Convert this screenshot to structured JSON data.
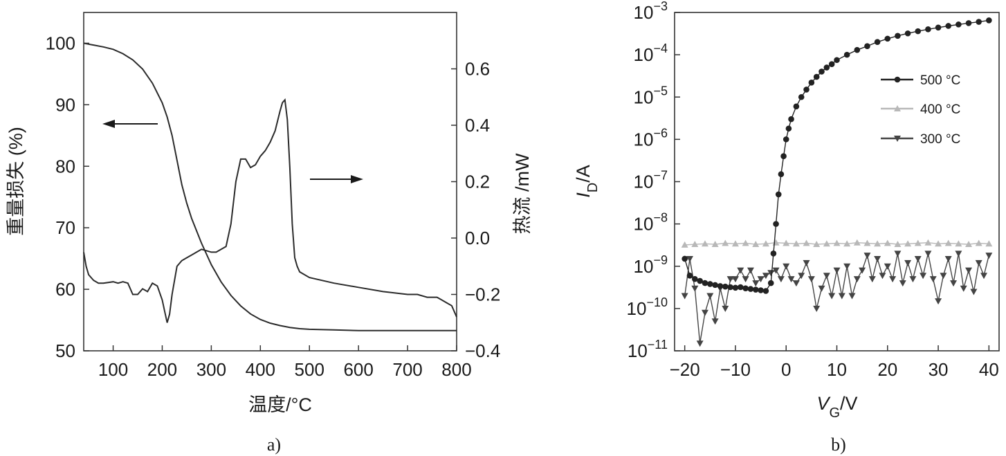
{
  "chart_data": [
    {
      "panel": "a)",
      "type": "line",
      "xlabel": "温度/°C",
      "ylabel_left": "重量损失 (%)",
      "ylabel_right": "热流 /mW",
      "xlim": [
        40,
        800
      ],
      "ylim_left": [
        50,
        105
      ],
      "ylim_right": [
        -0.4,
        0.8
      ],
      "xticks": [
        100,
        200,
        300,
        400,
        500,
        600,
        700,
        800
      ],
      "yticks_left": [
        50,
        60,
        70,
        80,
        90,
        100
      ],
      "yticks_right": [
        "-0.4",
        "-0.2",
        "0.0",
        "0.2",
        "0.4",
        "0.6"
      ],
      "xtick_labels": [
        "100",
        "200",
        "300",
        "400",
        "500",
        "600",
        "700",
        "800"
      ],
      "ytick_left_labels": [
        "50",
        "60",
        "70",
        "80",
        "90",
        "100"
      ],
      "ytick_right_labels": [
        "−0.4",
        "−0.2",
        "0.0",
        "0.2",
        "0.4",
        "0.6"
      ],
      "series": [
        {
          "axis": "left",
          "x": [
            40,
            60,
            80,
            100,
            120,
            140,
            160,
            180,
            200,
            210,
            220,
            230,
            240,
            250,
            260,
            280,
            300,
            320,
            340,
            360,
            380,
            400,
            420,
            440,
            460,
            480,
            500,
            550,
            600,
            700,
            800
          ],
          "y": [
            100,
            99.7,
            99.4,
            99.0,
            98.3,
            97.3,
            95.8,
            93.5,
            90.3,
            88.0,
            85.0,
            81.0,
            77.0,
            74.0,
            71.5,
            67.5,
            64.0,
            61.2,
            59.0,
            57.3,
            56.0,
            55.1,
            54.5,
            54.1,
            53.8,
            53.6,
            53.5,
            53.4,
            53.3,
            53.3,
            53.3
          ]
        },
        {
          "axis": "right",
          "x": [
            40,
            45,
            50,
            60,
            70,
            80,
            100,
            110,
            120,
            130,
            140,
            150,
            160,
            170,
            180,
            190,
            200,
            205,
            210,
            215,
            220,
            230,
            240,
            250,
            260,
            270,
            280,
            290,
            300,
            310,
            320,
            330,
            340,
            350,
            360,
            370,
            380,
            390,
            400,
            410,
            420,
            430,
            440,
            445,
            450,
            455,
            460,
            465,
            470,
            475,
            480,
            500,
            550,
            600,
            650,
            700,
            720,
            740,
            760,
            770,
            780,
            790,
            800
          ],
          "y": [
            -0.05,
            -0.1,
            -0.13,
            -0.15,
            -0.16,
            -0.16,
            -0.155,
            -0.16,
            -0.155,
            -0.16,
            -0.2,
            -0.2,
            -0.18,
            -0.19,
            -0.16,
            -0.17,
            -0.22,
            -0.26,
            -0.3,
            -0.27,
            -0.2,
            -0.1,
            -0.08,
            -0.07,
            -0.06,
            -0.05,
            -0.04,
            -0.045,
            -0.05,
            -0.05,
            -0.04,
            -0.03,
            0.05,
            0.2,
            0.28,
            0.28,
            0.25,
            0.26,
            0.29,
            0.31,
            0.34,
            0.38,
            0.45,
            0.48,
            0.49,
            0.42,
            0.25,
            0.05,
            -0.07,
            -0.1,
            -0.12,
            -0.14,
            -0.16,
            -0.175,
            -0.19,
            -0.2,
            -0.2,
            -0.21,
            -0.21,
            -0.22,
            -0.23,
            -0.24,
            -0.28
          ]
        }
      ],
      "annotations": [
        {
          "type": "arrow",
          "direction": "left",
          "refers_to": "left axis"
        },
        {
          "type": "arrow",
          "direction": "right",
          "refers_to": "right axis"
        }
      ]
    },
    {
      "panel": "b)",
      "type": "line",
      "xlabel": "V_G/V",
      "ylabel": "I_D/A",
      "yscale": "log",
      "xlim": [
        -22,
        42
      ],
      "ylim": [
        1e-11,
        0.001
      ],
      "xticks": [
        -20,
        -10,
        0,
        10,
        20,
        30,
        40
      ],
      "xtick_labels": [
        "−20",
        "−10",
        "0",
        "10",
        "20",
        "30",
        "40"
      ],
      "yticks_exp": [
        -11,
        -10,
        -9,
        -8,
        -7,
        -6,
        -5,
        -4,
        -3
      ],
      "legend_position": "upper right",
      "series": [
        {
          "name": "500 °C",
          "marker": "circle",
          "color": "#222222",
          "x": [
            -20,
            -19,
            -18,
            -17,
            -16,
            -15,
            -14,
            -13,
            -12,
            -11,
            -10,
            -9,
            -8,
            -7,
            -6,
            -5,
            -4,
            -3,
            -2.5,
            -2,
            -1.5,
            -1,
            -0.5,
            0,
            0.5,
            1,
            2,
            3,
            4,
            5,
            6,
            7,
            8,
            9,
            10,
            12,
            14,
            16,
            18,
            20,
            22,
            24,
            26,
            28,
            30,
            32,
            34,
            36,
            38,
            40
          ],
          "y": [
            1.5e-09,
            6e-10,
            5e-10,
            4.5e-10,
            4e-10,
            3.8e-10,
            3.6e-10,
            3.4e-10,
            3.3e-10,
            3.2e-10,
            3.1e-10,
            3.2e-10,
            3e-10,
            2.9e-10,
            2.8e-10,
            2.7e-10,
            2.6e-10,
            4e-10,
            2e-09,
            1e-08,
            5e-08,
            1.5e-07,
            4e-07,
            1e-06,
            1.8e-06,
            3e-06,
            6e-06,
            1e-05,
            1.5e-05,
            2.2e-05,
            3e-05,
            4e-05,
            5e-05,
            6e-05,
            7.5e-05,
            0.0001,
            0.00013,
            0.00016,
            0.0002,
            0.00024,
            0.00028,
            0.00032,
            0.00036,
            0.0004,
            0.00044,
            0.00048,
            0.00052,
            0.00056,
            0.0006,
            0.00065
          ]
        },
        {
          "name": "400 °C",
          "marker": "triangle-up",
          "color": "#b8b8b8",
          "x": [
            -20,
            -18,
            -16,
            -14,
            -12,
            -10,
            -8,
            -6,
            -4,
            -2,
            0,
            2,
            4,
            6,
            8,
            10,
            12,
            14,
            16,
            18,
            20,
            22,
            24,
            26,
            28,
            30,
            32,
            34,
            36,
            38,
            40
          ],
          "y": [
            3.2e-09,
            3.3e-09,
            3.4e-09,
            3.3e-09,
            3.5e-09,
            3.4e-09,
            3.5e-09,
            3.3e-09,
            3.4e-09,
            3.6e-09,
            3.5e-09,
            3.4e-09,
            3.5e-09,
            3.3e-09,
            3.4e-09,
            3.5e-09,
            3.4e-09,
            3.6e-09,
            3.5e-09,
            3.4e-09,
            3.5e-09,
            3.3e-09,
            3.4e-09,
            3.5e-09,
            3.6e-09,
            3.4e-09,
            3.5e-09,
            3.4e-09,
            3.3e-09,
            3.5e-09,
            3.4e-09
          ]
        },
        {
          "name": "300 °C",
          "marker": "triangle-down",
          "color": "#444444",
          "x": [
            -20,
            -19,
            -18,
            -17,
            -16,
            -15,
            -14,
            -13,
            -12,
            -11,
            -10,
            -9,
            -8,
            -7,
            -6,
            -5,
            -4,
            -3,
            -2,
            -1,
            0,
            1,
            2,
            3,
            4,
            5,
            6,
            7,
            8,
            9,
            10,
            11,
            12,
            13,
            14,
            15,
            16,
            17,
            18,
            19,
            20,
            21,
            22,
            23,
            24,
            25,
            26,
            27,
            28,
            29,
            30,
            31,
            32,
            33,
            34,
            35,
            36,
            37,
            38,
            39,
            40
          ],
          "y": [
            2e-10,
            1.5e-09,
            3e-10,
            1.5e-11,
            8e-11,
            2e-10,
            5e-11,
            3e-10,
            1e-10,
            5e-10,
            5e-10,
            8e-10,
            5e-10,
            8e-10,
            4e-10,
            5e-10,
            6e-10,
            7e-10,
            8e-10,
            5e-10,
            1e-09,
            5e-10,
            4e-10,
            6e-10,
            1.2e-09,
            5e-10,
            1e-10,
            3e-10,
            6e-10,
            2e-10,
            8e-10,
            2e-10,
            1e-09,
            2e-10,
            5e-10,
            8e-10,
            1.8e-09,
            5e-10,
            1.5e-09,
            6e-10,
            1e-09,
            5e-10,
            2e-09,
            4e-10,
            1.2e-09,
            5e-10,
            1.5e-09,
            6e-10,
            2e-09,
            5e-10,
            1.5e-10,
            6e-10,
            1.5e-09,
            4e-10,
            2e-09,
            3e-10,
            8e-10,
            2.5e-10,
            1.2e-09,
            6e-10,
            1.8e-09
          ]
        }
      ]
    }
  ]
}
